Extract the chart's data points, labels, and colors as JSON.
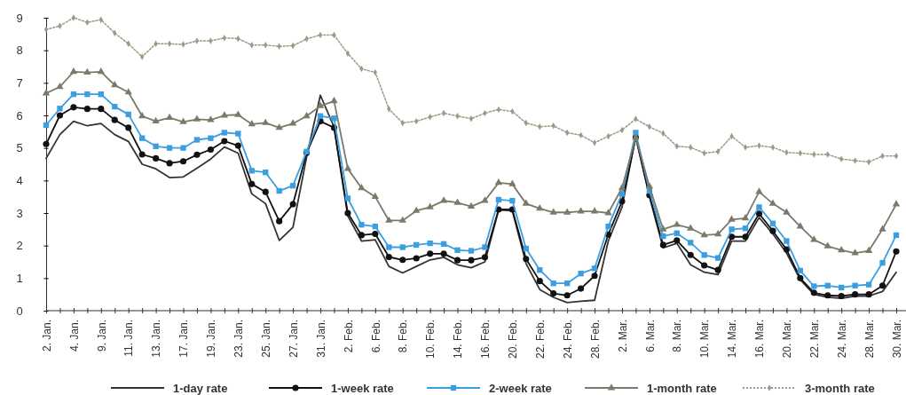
{
  "chart_data": {
    "type": "line",
    "categories": [
      "2. Jan.",
      null,
      "4. Jan.",
      null,
      "9. Jan.",
      null,
      "11. Jan.",
      null,
      "13. Jan.",
      null,
      "17. Jan.",
      null,
      "19. Jan.",
      null,
      "23. Jan.",
      null,
      "25. Jan.",
      null,
      "27. Jan.",
      null,
      "31. Jan.",
      null,
      "2. Feb.",
      null,
      "6. Feb.",
      null,
      "8. Feb.",
      null,
      "10. Feb.",
      null,
      "14. Feb.",
      null,
      "16. Feb.",
      null,
      "20. Feb.",
      null,
      "22. Feb.",
      null,
      "24. Feb.",
      null,
      "28. Feb.",
      null,
      "2. Mar.",
      null,
      "6. Mar.",
      null,
      "8. Mar.",
      null,
      "10. Mar.",
      null,
      "14. Mar.",
      null,
      "16. Mar.",
      null,
      "20. Mar.",
      null,
      "22. Mar.",
      null,
      "24. Mar.",
      null,
      "28. Mar.",
      null,
      "30. Mar."
    ],
    "series": [
      {
        "name": "1-day rate",
        "color": "#333333",
        "marker": "none",
        "line_style": "solid",
        "values": [
          4.68,
          5.41,
          5.82,
          5.68,
          5.75,
          5.41,
          5.2,
          4.5,
          4.36,
          4.09,
          4.11,
          4.38,
          4.66,
          5.03,
          4.84,
          3.59,
          3.29,
          2.16,
          2.56,
          4.73,
          6.62,
          5.64,
          2.91,
          2.14,
          2.18,
          1.36,
          1.16,
          1.36,
          1.56,
          1.64,
          1.41,
          1.32,
          1.5,
          3.09,
          3.07,
          1.45,
          0.65,
          0.41,
          0.25,
          0.29,
          0.32,
          2.14,
          3.18,
          5.36,
          3.5,
          1.93,
          2.07,
          1.41,
          1.18,
          1.11,
          2.14,
          2.14,
          2.86,
          2.36,
          1.77,
          0.95,
          0.5,
          0.41,
          0.38,
          0.45,
          0.45,
          0.59,
          1.18
        ]
      },
      {
        "name": "1-week rate",
        "color": "#111111",
        "marker": "circle",
        "line_style": "solid",
        "values": [
          5.12,
          6.0,
          6.25,
          6.2,
          6.2,
          5.86,
          5.62,
          4.8,
          4.68,
          4.53,
          4.59,
          4.79,
          4.95,
          5.21,
          5.07,
          3.89,
          3.65,
          2.75,
          3.27,
          4.85,
          5.82,
          5.62,
          3.0,
          2.32,
          2.36,
          1.65,
          1.56,
          1.61,
          1.75,
          1.75,
          1.55,
          1.55,
          1.64,
          3.11,
          3.11,
          1.59,
          0.91,
          0.53,
          0.47,
          0.68,
          1.07,
          2.34,
          3.36,
          5.32,
          3.55,
          2.02,
          2.16,
          1.71,
          1.39,
          1.25,
          2.27,
          2.27,
          2.98,
          2.45,
          1.88,
          1.0,
          0.55,
          0.47,
          0.45,
          0.5,
          0.5,
          0.77,
          1.82
        ]
      },
      {
        "name": "2-week rate",
        "color": "#3a9ee0",
        "marker": "square",
        "line_style": "solid",
        "values": [
          5.7,
          6.21,
          6.65,
          6.65,
          6.65,
          6.27,
          6.03,
          5.3,
          5.05,
          5.0,
          5.0,
          5.25,
          5.3,
          5.47,
          5.44,
          4.3,
          4.25,
          3.68,
          3.84,
          4.89,
          5.98,
          5.91,
          3.45,
          2.64,
          2.59,
          1.95,
          1.95,
          2.02,
          2.07,
          2.05,
          1.86,
          1.84,
          1.95,
          3.41,
          3.38,
          1.91,
          1.25,
          0.84,
          0.84,
          1.14,
          1.3,
          2.59,
          3.59,
          5.47,
          3.68,
          2.29,
          2.38,
          2.09,
          1.71,
          1.62,
          2.5,
          2.53,
          3.18,
          2.68,
          2.14,
          1.23,
          0.75,
          0.77,
          0.71,
          0.77,
          0.8,
          1.47,
          2.32
        ]
      },
      {
        "name": "1-month rate",
        "color": "#7a7a6a",
        "marker": "triangle",
        "line_style": "solid",
        "values": [
          6.68,
          6.88,
          7.34,
          7.32,
          7.34,
          6.93,
          6.71,
          5.98,
          5.82,
          5.93,
          5.8,
          5.88,
          5.86,
          6.0,
          6.02,
          5.73,
          5.77,
          5.62,
          5.75,
          5.98,
          6.29,
          6.44,
          4.36,
          3.77,
          3.5,
          2.77,
          2.77,
          3.07,
          3.18,
          3.38,
          3.32,
          3.2,
          3.38,
          3.93,
          3.89,
          3.29,
          3.14,
          3.02,
          3.02,
          3.05,
          3.05,
          3.0,
          3.77,
          5.32,
          3.82,
          2.5,
          2.64,
          2.53,
          2.32,
          2.35,
          2.8,
          2.84,
          3.65,
          3.29,
          3.02,
          2.59,
          2.18,
          1.98,
          1.86,
          1.77,
          1.84,
          2.5,
          3.27
        ]
      },
      {
        "name": "3-month rate",
        "color": "#9a9a88",
        "marker": "diamond",
        "line_style": "dotted",
        "values": [
          8.64,
          8.75,
          9.0,
          8.86,
          8.94,
          8.53,
          8.2,
          7.8,
          8.2,
          8.2,
          8.18,
          8.29,
          8.29,
          8.38,
          8.36,
          8.16,
          8.16,
          8.12,
          8.14,
          8.35,
          8.47,
          8.47,
          7.9,
          7.43,
          7.32,
          6.2,
          5.77,
          5.82,
          5.95,
          6.07,
          5.98,
          5.9,
          6.07,
          6.18,
          6.12,
          5.77,
          5.65,
          5.68,
          5.47,
          5.39,
          5.16,
          5.36,
          5.55,
          5.89,
          5.65,
          5.45,
          5.05,
          5.02,
          4.84,
          4.89,
          5.36,
          5.02,
          5.07,
          5.02,
          4.86,
          4.84,
          4.8,
          4.8,
          4.66,
          4.61,
          4.57,
          4.75,
          4.75
        ]
      }
    ],
    "ylim": [
      0,
      9
    ],
    "yticks": [
      0,
      1,
      2,
      3,
      4,
      5,
      6,
      7,
      8,
      9
    ],
    "grid": false,
    "legend": "bottom"
  }
}
